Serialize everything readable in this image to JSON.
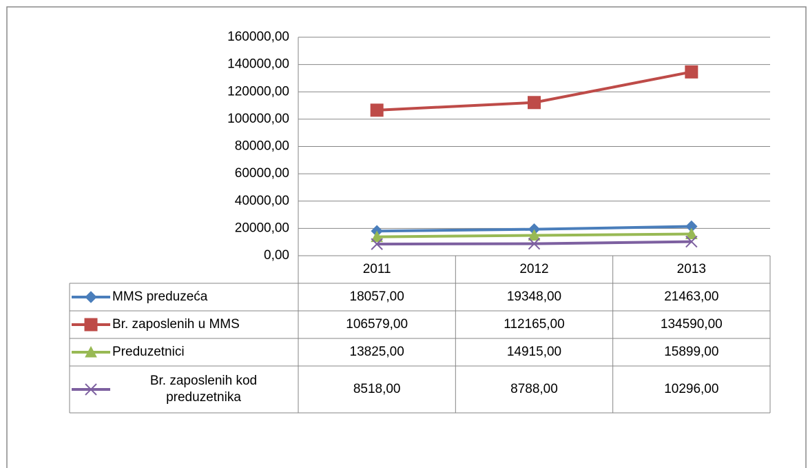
{
  "chart_data": {
    "type": "line",
    "categories": [
      "2011",
      "2012",
      "2013"
    ],
    "series": [
      {
        "name": "MMS preduzeća",
        "color": "#4a7ebb",
        "marker": "diamond",
        "values": [
          18057,
          19348,
          21463
        ],
        "value_labels": [
          "18057,00",
          "19348,00",
          "21463,00"
        ]
      },
      {
        "name": "Br. zaposlenih u MMS",
        "color": "#be4b48",
        "marker": "square",
        "values": [
          106579,
          112165,
          134590
        ],
        "value_labels": [
          "106579,00",
          "112165,00",
          "134590,00"
        ]
      },
      {
        "name": "Preduzetnici",
        "color": "#98b954",
        "marker": "triangle",
        "values": [
          13825,
          14915,
          15899
        ],
        "value_labels": [
          "13825,00",
          "14915,00",
          "15899,00"
        ]
      },
      {
        "name": "Br. zaposlenih kod preduzetnika",
        "color": "#7d60a0",
        "marker": "x",
        "values": [
          8518,
          8788,
          10296
        ],
        "value_labels": [
          "8518,00",
          "8788,00",
          "10296,00"
        ]
      }
    ],
    "ylim": [
      0,
      160000
    ],
    "yticks": [
      {
        "value": 0,
        "label": "0,00"
      },
      {
        "value": 20000,
        "label": "20000,00"
      },
      {
        "value": 40000,
        "label": "40000,00"
      },
      {
        "value": 60000,
        "label": "60000,00"
      },
      {
        "value": 80000,
        "label": "80000,00"
      },
      {
        "value": 100000,
        "label": "100000,00"
      },
      {
        "value": 120000,
        "label": "120000,00"
      },
      {
        "value": 140000,
        "label": "140000,00"
      },
      {
        "value": 160000,
        "label": "160000,00"
      }
    ],
    "grid": true
  }
}
